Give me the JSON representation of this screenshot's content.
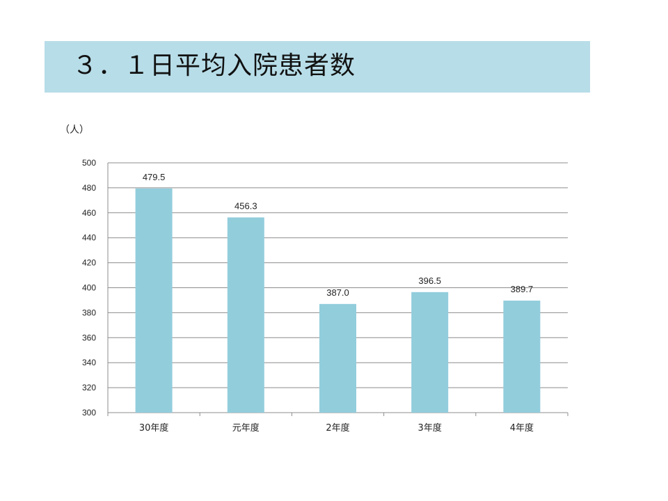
{
  "header": {
    "title": "３．１日平均入院患者数"
  },
  "colors": {
    "header_bg": "#b7dde8",
    "bar": "#92cddc",
    "grid": "#8c8c8c"
  },
  "chart_data": {
    "type": "bar",
    "title": "",
    "xlabel": "",
    "ylabel": "（人）",
    "ylim": [
      300,
      500
    ],
    "ytick_step": 20,
    "grid": true,
    "categories": [
      "30年度",
      "元年度",
      "2年度",
      "3年度",
      "4年度"
    ],
    "values": [
      479.5,
      456.3,
      387.0,
      396.5,
      389.7
    ],
    "data_labels": [
      "479.5",
      "456.3",
      "387.0",
      "396.5",
      "389.7"
    ]
  }
}
